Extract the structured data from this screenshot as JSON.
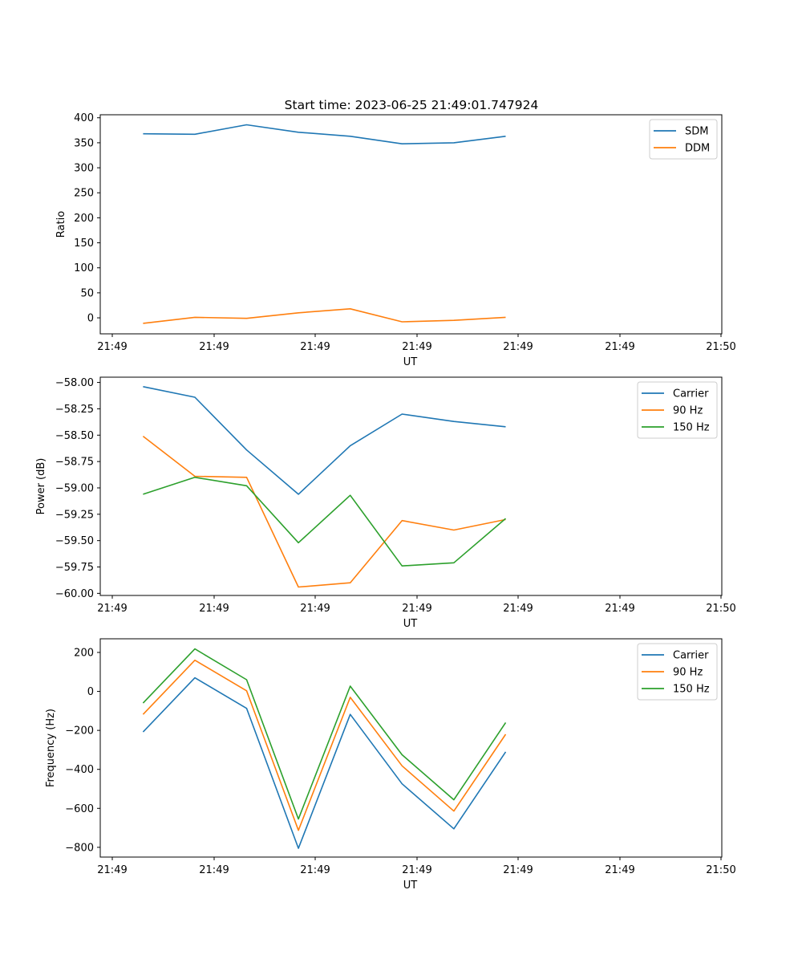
{
  "figure": {
    "title": "Start time: 2023-06-25 21:49:01.747924"
  },
  "colors": {
    "series_1": "#1f77b4",
    "series_2": "#ff7f0e",
    "series_3": "#2ca02c",
    "axis": "#000000",
    "background": "#ffffff"
  },
  "chart_data": [
    {
      "type": "line",
      "xlabel": "UT",
      "ylabel": "Ratio",
      "x": [
        "21:49:01.747924",
        "21:49:02.047924",
        "21:49:02.347924",
        "21:49:02.647924",
        "21:49:02.947924",
        "21:49:03.247924",
        "21:49:03.547924",
        "21:49:03.847924"
      ],
      "xlim": [
        "21:49:01.5",
        "21:49:05.1"
      ],
      "xtick_labels": [
        "21:49",
        "21:49",
        "21:49",
        "21:49",
        "21:49",
        "21:49",
        "21:50"
      ],
      "ylim": [
        -32,
        406
      ],
      "yticks": [
        0,
        50,
        100,
        150,
        200,
        250,
        300,
        350,
        400
      ],
      "legend_position": "top-right",
      "grid": false,
      "series": [
        {
          "name": "SDM",
          "color": "#1f77b4",
          "values": [
            368,
            367,
            386,
            371,
            363,
            348,
            350,
            363
          ]
        },
        {
          "name": "DDM",
          "color": "#ff7f0e",
          "values": [
            -11,
            1,
            -1,
            10,
            18,
            -8,
            -5,
            1
          ]
        }
      ]
    },
    {
      "type": "line",
      "xlabel": "UT",
      "ylabel": "Power (dB)",
      "x": [
        "21:49:01.747924",
        "21:49:02.047924",
        "21:49:02.347924",
        "21:49:02.647924",
        "21:49:02.947924",
        "21:49:03.247924",
        "21:49:03.547924",
        "21:49:03.847924"
      ],
      "xlim": [
        "21:49:01.5",
        "21:49:05.1"
      ],
      "xtick_labels": [
        "21:49",
        "21:49",
        "21:49",
        "21:49",
        "21:49",
        "21:49",
        "21:50"
      ],
      "ylim": [
        -60.02,
        -57.95
      ],
      "yticks": [
        -58.0,
        -58.25,
        -58.5,
        -58.75,
        -59.0,
        -59.25,
        -59.5,
        -59.75,
        -60.0
      ],
      "ytick_labels": [
        "−58.00",
        "−58.25",
        "−58.50",
        "−58.75",
        "−59.00",
        "−59.25",
        "−59.50",
        "−59.75",
        "−60.00"
      ],
      "legend_position": "top-right",
      "grid": false,
      "series": [
        {
          "name": "Carrier",
          "color": "#1f77b4",
          "values": [
            -58.04,
            -58.14,
            -58.64,
            -59.06,
            -58.6,
            -58.3,
            -58.37,
            -58.42
          ]
        },
        {
          "name": "90 Hz",
          "color": "#ff7f0e",
          "values": [
            -58.51,
            -58.89,
            -58.9,
            -59.94,
            -59.9,
            -59.31,
            -59.4,
            -59.3
          ]
        },
        {
          "name": "150 Hz",
          "color": "#2ca02c",
          "values": [
            -59.06,
            -58.9,
            -58.98,
            -59.52,
            -59.07,
            -59.74,
            -59.71,
            -59.29
          ]
        }
      ]
    },
    {
      "type": "line",
      "xlabel": "UT",
      "ylabel": "Frequency (Hz)",
      "x": [
        "21:49:01.747924",
        "21:49:02.047924",
        "21:49:02.347924",
        "21:49:02.647924",
        "21:49:02.947924",
        "21:49:03.247924",
        "21:49:03.547924",
        "21:49:03.847924"
      ],
      "xlim": [
        "21:49:01.5",
        "21:49:05.1"
      ],
      "xtick_labels": [
        "21:49",
        "21:49",
        "21:49",
        "21:49",
        "21:49",
        "21:49",
        "21:50"
      ],
      "ylim": [
        -850,
        270
      ],
      "yticks": [
        200,
        0,
        -200,
        -400,
        -600,
        -800
      ],
      "ytick_labels": [
        "200",
        "0",
        "−200",
        "−400",
        "−600",
        "−800"
      ],
      "legend_position": "top-right",
      "grid": false,
      "series": [
        {
          "name": "Carrier",
          "color": "#1f77b4",
          "values": [
            -208,
            70,
            -87,
            -805,
            -118,
            -474,
            -705,
            -310
          ]
        },
        {
          "name": "90 Hz",
          "color": "#ff7f0e",
          "values": [
            -118,
            160,
            3,
            -713,
            -30,
            -382,
            -614,
            -220
          ]
        },
        {
          "name": "150 Hz",
          "color": "#2ca02c",
          "values": [
            -60,
            218,
            60,
            -655,
            27,
            -325,
            -556,
            -160
          ]
        }
      ]
    }
  ]
}
